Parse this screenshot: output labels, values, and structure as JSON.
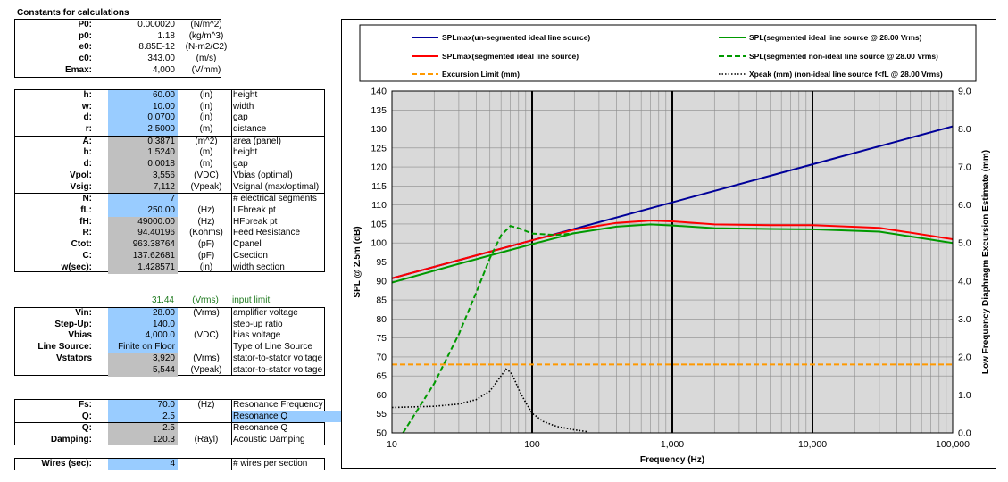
{
  "constants": {
    "title": "Constants for calculations",
    "rows": [
      {
        "label": "P0:",
        "value": "0.000020",
        "unit": "(N/m^2)"
      },
      {
        "label": "p0:",
        "value": "1.18",
        "unit": "(kg/m^3)"
      },
      {
        "label": "e0:",
        "value": "8.85E-12",
        "unit": "(N-m2/C2)"
      },
      {
        "label": "c0:",
        "value": "343.00",
        "unit": "(m/s)"
      },
      {
        "label": "Emax:",
        "value": "4,000",
        "unit": "(V/mm)"
      }
    ]
  },
  "panel": {
    "rows": [
      {
        "label": "h:",
        "value": "60.00",
        "unit": "(in)",
        "desc": "height",
        "style": "blue"
      },
      {
        "label": "w:",
        "value": "10.00",
        "unit": "(in)",
        "desc": "width",
        "style": "blue"
      },
      {
        "label": "d:",
        "value": "0.0700",
        "unit": "(in)",
        "desc": "gap",
        "style": "blue"
      },
      {
        "label": "r:",
        "value": "2.5000",
        "unit": "(m)",
        "desc": "distance",
        "style": "blue"
      },
      {
        "label": "A:",
        "value": "0.3871",
        "unit": "(m^2)",
        "desc": "area (panel)",
        "style": "gray",
        "sep": true
      },
      {
        "label": "h:",
        "value": "1.5240",
        "unit": "(m)",
        "desc": "height",
        "style": "gray"
      },
      {
        "label": "d:",
        "value": "0.0018",
        "unit": "(m)",
        "desc": "gap",
        "style": "gray"
      },
      {
        "label": "Vpol:",
        "value": "3,556",
        "unit": "(VDC)",
        "desc": "Vbias (optimal)",
        "style": "gray"
      },
      {
        "label": "Vsig:",
        "value": "7,112",
        "unit": "(Vpeak)",
        "desc": "Vsignal (max/optimal)",
        "style": "gray"
      },
      {
        "label": "N:",
        "value": "7",
        "unit": "",
        "desc": "# electrical segments",
        "style": "blue",
        "sep": true
      },
      {
        "label": "fL:",
        "value": "250.00",
        "unit": "(Hz)",
        "desc": "LFbreak pt",
        "style": "blue"
      },
      {
        "label": "fH:",
        "value": "49000.00",
        "unit": "(Hz)",
        "desc": "HFbreak pt",
        "style": "gray"
      },
      {
        "label": "R:",
        "value": "94.40196",
        "unit": "(Kohms)",
        "desc": "Feed Resistance",
        "style": "gray"
      },
      {
        "label": "Ctot:",
        "value": "963.38764",
        "unit": "(pF)",
        "desc": "Cpanel",
        "style": "gray"
      },
      {
        "label": "C:",
        "value": "137.62681",
        "unit": "(pF)",
        "desc": "Csection",
        "style": "gray"
      },
      {
        "label": "w(sec):",
        "value": "1.428571",
        "unit": "(in)",
        "desc": "width section",
        "style": "gray",
        "sep": true
      }
    ]
  },
  "input_limit": {
    "value": "31.44",
    "unit": "(Vrms)",
    "desc": "input limit"
  },
  "amp": {
    "rows": [
      {
        "label": "Vin:",
        "value": "28.00",
        "unit": "(Vrms)",
        "desc": "amplifier voltage",
        "style": "blue"
      },
      {
        "label": "Step-Up:",
        "value": "140.0",
        "unit": "",
        "desc": "step-up ratio",
        "style": "blue"
      },
      {
        "label": "Vbias",
        "value": "4,000.0",
        "unit": "(VDC)",
        "desc": "bias voltage",
        "style": "blue"
      },
      {
        "label": "Line Source:",
        "value": "Finite on Floor",
        "unit": "",
        "desc": "Type of Line Source",
        "style": "blue"
      },
      {
        "label": "Vstators",
        "value": "3,920",
        "unit": "(Vrms)",
        "desc": "stator-to-stator voltage",
        "style": "gray",
        "sep": true
      },
      {
        "label": "",
        "value": "5,544",
        "unit": "(Vpeak)",
        "desc": "stator-to-stator voltage",
        "style": "gray"
      }
    ]
  },
  "resonance": {
    "rows": [
      {
        "label": "Fs:",
        "value": "70.0",
        "unit": "(Hz)",
        "desc": "Resonance Frequency",
        "style": "blue"
      },
      {
        "label": "Q:",
        "value": "2.5",
        "unit": "",
        "desc": "Resonance Q",
        "style": "blue",
        "hl": true
      },
      {
        "label": "Q:",
        "value": "2.5",
        "unit": "",
        "desc": "Resonance Q",
        "style": "gray",
        "sep": true
      },
      {
        "label": "Damping:",
        "value": "120.3",
        "unit": "(Rayl)",
        "desc": "Acoustic Damping",
        "style": "gray"
      }
    ]
  },
  "wires": {
    "label": "Wires (sec):",
    "value": "4",
    "unit": "",
    "desc": "# wires per section",
    "style": "blue"
  },
  "colors": {
    "input_blue": "#99ccff",
    "calc_gray": "#c0c0c0",
    "plot_bg": "#d9d9d9",
    "s1": "#000099",
    "s2": "#ff0000",
    "s3": "#009900",
    "s4": "#009900",
    "s5": "#ff9900",
    "s6": "#000000"
  },
  "chart_data": {
    "type": "line",
    "xscale": "log",
    "xlabel": "Frequency (Hz)",
    "ylabel": "SPL @ 2.5m (dB)",
    "y2label": "Low Frequency Diaphragm Excursion Estimate (mm)",
    "xlim": [
      10,
      100000
    ],
    "ylim": [
      50,
      140
    ],
    "y2lim": [
      0,
      9
    ],
    "xticks": [
      10,
      100,
      1000,
      10000,
      100000
    ],
    "xtick_labels": [
      "10",
      "100",
      "1,000",
      "10,000",
      "100,000"
    ],
    "yticks": [
      50,
      55,
      60,
      65,
      70,
      75,
      80,
      85,
      90,
      95,
      100,
      105,
      110,
      115,
      120,
      125,
      130,
      135,
      140
    ],
    "y2ticks": [
      0,
      1,
      2,
      3,
      4,
      5,
      6,
      7,
      8,
      9
    ],
    "y2tick_labels": [
      "0.0",
      "1.0",
      "2.0",
      "3.0",
      "4.0",
      "5.0",
      "6.0",
      "7.0",
      "8.0",
      "9.0"
    ],
    "grid": true,
    "legend_position": "top",
    "series": [
      {
        "name": "SPLmax(un-segmented ideal line source)",
        "axis": "left",
        "style": "solid",
        "x": [
          10,
          100,
          1000,
          10000,
          100000
        ],
        "y": [
          90.7,
          100.7,
          110.7,
          120.7,
          130.7
        ]
      },
      {
        "name": "SPLmax(segmented ideal line source)",
        "axis": "left",
        "style": "solid",
        "x": [
          10,
          30,
          100,
          200,
          400,
          700,
          1000,
          2000,
          5000,
          10000,
          30000,
          100000
        ],
        "y": [
          90.7,
          95.5,
          100.7,
          103.5,
          105.3,
          105.9,
          105.7,
          104.9,
          104.7,
          104.7,
          104.0,
          101.0
        ]
      },
      {
        "name": "SPL(segmented ideal line source @ 28.00 Vrms)",
        "axis": "left",
        "style": "solid",
        "x": [
          10,
          30,
          100,
          200,
          400,
          700,
          1000,
          2000,
          5000,
          10000,
          30000,
          100000
        ],
        "y": [
          89.6,
          94.5,
          99.7,
          102.6,
          104.3,
          104.9,
          104.6,
          103.9,
          103.7,
          103.6,
          103.0,
          100.0
        ]
      },
      {
        "name": "SPL(segmented non-ideal line source @ 28.00 Vrms)",
        "axis": "left",
        "style": "dashed",
        "x": [
          12,
          20,
          30,
          40,
          50,
          60,
          70,
          80,
          100,
          150,
          200
        ],
        "y": [
          50,
          63,
          76,
          87,
          96,
          102,
          104.5,
          103.9,
          102.5,
          102.1,
          102.6
        ]
      },
      {
        "name": "Excursion Limit (mm)",
        "axis": "right",
        "style": "dashed",
        "x": [
          10,
          100000
        ],
        "y": [
          1.8,
          1.8
        ]
      },
      {
        "name": "Xpeak (mm) (non-ideal line source f<fL @ 28.00 Vrms)",
        "axis": "right",
        "style": "dotted",
        "x": [
          10,
          20,
          30,
          40,
          50,
          60,
          65,
          70,
          75,
          80,
          90,
          100,
          120,
          150,
          200,
          250
        ],
        "y": [
          0.67,
          0.7,
          0.76,
          0.88,
          1.1,
          1.5,
          1.68,
          1.6,
          1.4,
          1.15,
          0.8,
          0.52,
          0.3,
          0.17,
          0.08,
          0.03
        ]
      }
    ]
  }
}
